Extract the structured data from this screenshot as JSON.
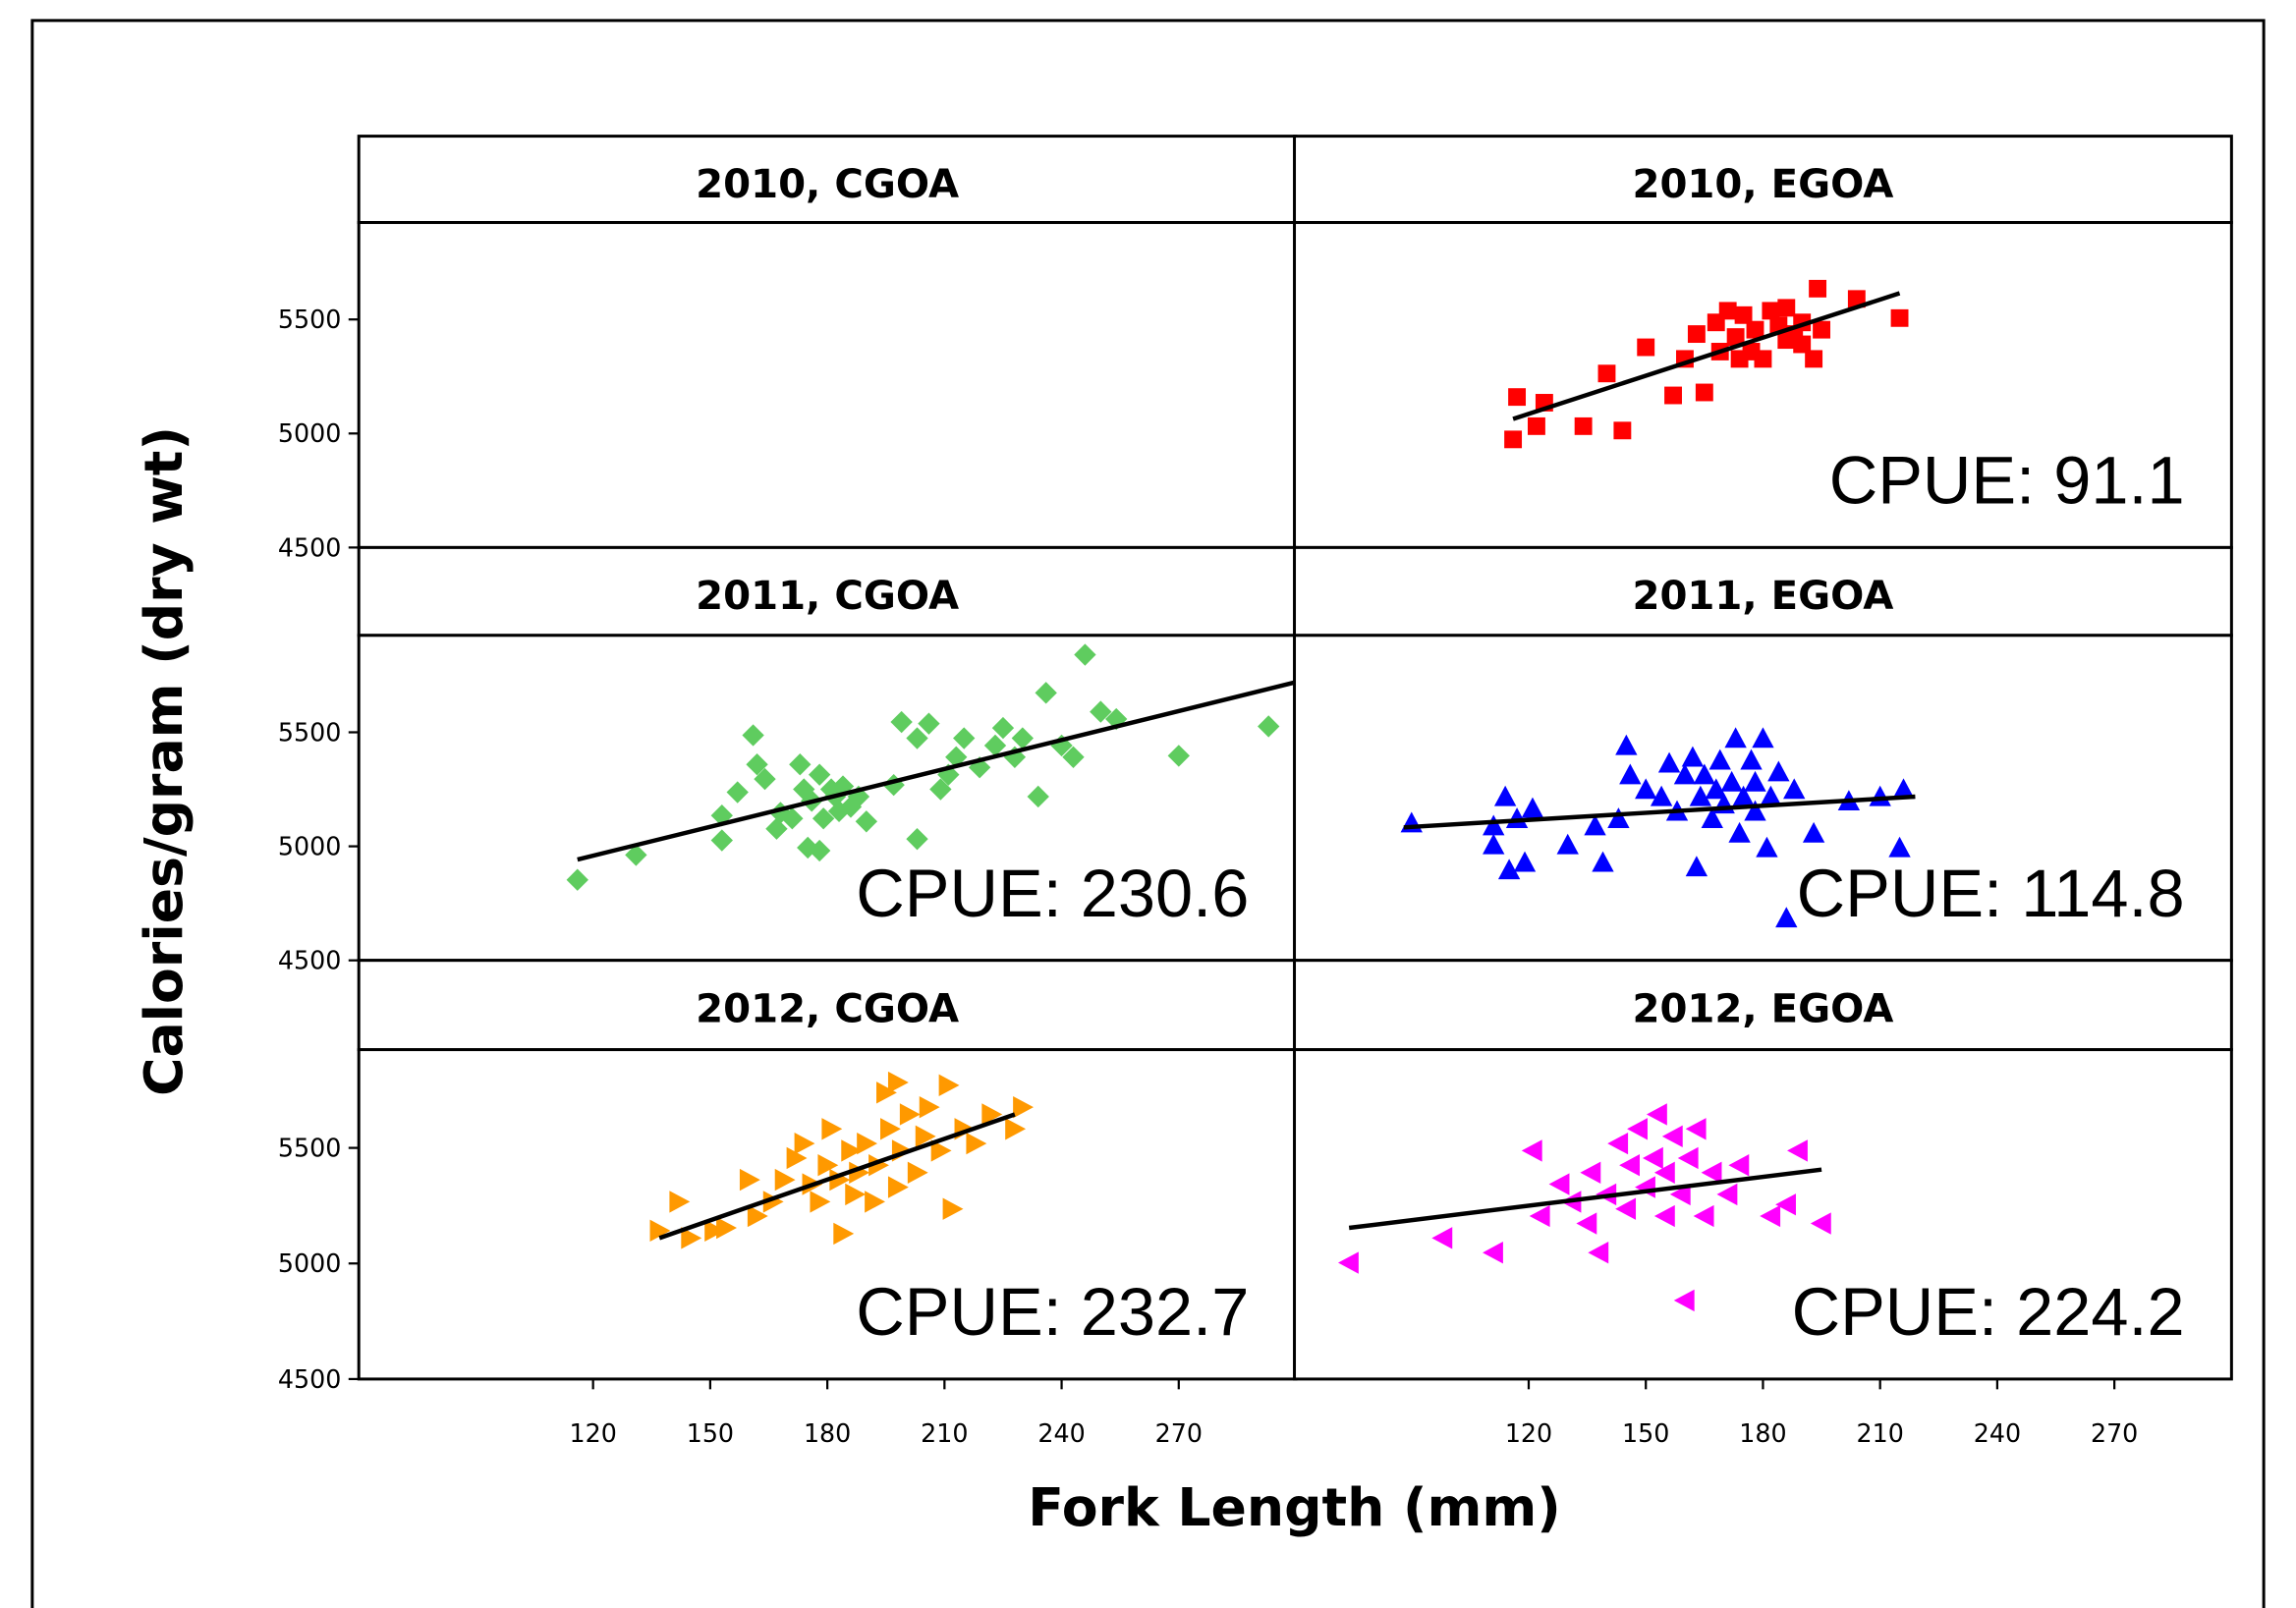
{
  "axis_labels": {
    "x_label": "Fork Length (mm)",
    "y_label": "Calories/gram (dry wt)"
  },
  "chart_data": [
    {
      "type": "scatter",
      "title": "2010, CGOA",
      "xlim": [
        60,
        300
      ],
      "ylim": [
        4500,
        5925
      ],
      "yticks": [
        4500,
        5000,
        5500
      ],
      "series": []
    },
    {
      "type": "scatter",
      "title": "2010, EGOA",
      "annotation": "CPUE: 91.1",
      "xlim": [
        60,
        300
      ],
      "ylim": [
        4500,
        5925
      ],
      "series": [
        {
          "color": "#ff0000",
          "marker": "square",
          "x": [
            116,
            117,
            122,
            124,
            134,
            144,
            140,
            150,
            157,
            160,
            165,
            163,
            169,
            168,
            173,
            175,
            177,
            178,
            182,
            184,
            186,
            188,
            190,
            193,
            195,
            194,
            204,
            215,
            171,
            180,
            174,
            186,
            190
          ],
          "y": [
            4974,
            5160,
            5032,
            5135,
            5032,
            5013,
            5263,
            5378,
            5167,
            5327,
            5180,
            5436,
            5359,
            5487,
            5423,
            5519,
            5359,
            5455,
            5538,
            5474,
            5410,
            5436,
            5487,
            5327,
            5455,
            5635,
            5590,
            5506,
            5538,
            5327,
            5327,
            5551,
            5391
          ]
        }
      ],
      "trend": {
        "x": [
          116,
          215
        ],
        "y": [
          5064,
          5615
        ]
      }
    },
    {
      "type": "scatter",
      "title": "2011, CGOA",
      "annotation": "CPUE: 230.6",
      "xlim": [
        60,
        300
      ],
      "ylim": [
        4500,
        5925
      ],
      "yticks": [
        4500,
        5000,
        5500
      ],
      "series": [
        {
          "color": "#5fcc5f",
          "marker": "diamond",
          "x": [
            116,
            131,
            153,
            153,
            157,
            161,
            162,
            164,
            167,
            168,
            173,
            174,
            176,
            178,
            179,
            181,
            182,
            183,
            184,
            186,
            188,
            190,
            178,
            197,
            199,
            203,
            203,
            206,
            209,
            211,
            213,
            215,
            219,
            223,
            225,
            228,
            230,
            234,
            236,
            240,
            243,
            246,
            250,
            254,
            270,
            293,
            171,
            175
          ],
          "y": [
            4853,
            4962,
            5026,
            5135,
            5237,
            5487,
            5359,
            5295,
            5077,
            5147,
            5359,
            5250,
            5199,
            5314,
            5122,
            5250,
            5218,
            5154,
            5263,
            5173,
            5218,
            5109,
            4981,
            5269,
            5545,
            5032,
            5474,
            5538,
            5250,
            5314,
            5391,
            5474,
            5346,
            5442,
            5519,
            5391,
            5474,
            5218,
            5673,
            5442,
            5391,
            5840,
            5590,
            5558,
            5397,
            5526,
            5122,
            4994
          ]
        }
      ],
      "trend": {
        "x": [
          116,
          301
        ],
        "y": [
          4942,
          5724
        ]
      }
    },
    {
      "type": "scatter",
      "title": "2011, EGOA",
      "annotation": "CPUE: 114.8",
      "xlim": [
        60,
        300
      ],
      "ylim": [
        4500,
        5925
      ],
      "series": [
        {
          "color": "#0000ff",
          "marker": "triangle-up",
          "x": [
            90,
            111,
            111,
            114,
            115,
            117,
            119,
            121,
            130,
            137,
            139,
            143,
            145,
            146,
            150,
            154,
            156,
            158,
            160,
            162,
            163,
            164,
            165,
            167,
            168,
            169,
            170,
            172,
            173,
            174,
            175,
            177,
            178,
            178,
            180,
            181,
            182,
            184,
            186,
            188,
            193,
            202,
            210,
            215,
            216
          ],
          "y": [
            5103,
            5090,
            5007,
            5218,
            4897,
            5122,
            4930,
            5167,
            5007,
            5090,
            4930,
            5122,
            5442,
            5314,
            5250,
            5218,
            5365,
            5154,
            5314,
            5391,
            4910,
            5218,
            5314,
            5122,
            5250,
            5378,
            5186,
            5282,
            5474,
            5058,
            5218,
            5378,
            5154,
            5282,
            5474,
            4994,
            5218,
            5327,
            4686,
            5250,
            5058,
            5199,
            5218,
            4994,
            5250
          ]
        }
      ],
      "trend": {
        "x": [
          88,
          219
        ],
        "y": [
          5083,
          5218
        ]
      }
    },
    {
      "type": "scatter",
      "title": "2012, CGOA",
      "annotation": "CPUE: 232.7",
      "xlim": [
        60,
        300
      ],
      "ylim": [
        4500,
        5925
      ],
      "yticks": [
        4500,
        5000,
        5500
      ],
      "xticks": [
        120,
        150,
        180,
        210,
        240,
        270
      ],
      "series": [
        {
          "color": "#ff9900",
          "marker": "triangle-right",
          "x": [
            137,
            142,
            145,
            151,
            154,
            160,
            162,
            166,
            169,
            172,
            174,
            176,
            178,
            180,
            181,
            183,
            184,
            186,
            187,
            188,
            190,
            192,
            193,
            195,
            196,
            198,
            199,
            201,
            203,
            205,
            206,
            209,
            211,
            212,
            215,
            218,
            222,
            230,
            228,
            198
          ],
          "y": [
            5142,
            5267,
            5110,
            5142,
            5154,
            5362,
            5205,
            5267,
            5362,
            5456,
            5519,
            5343,
            5267,
            5425,
            5582,
            5362,
            5129,
            5488,
            5299,
            5393,
            5519,
            5267,
            5425,
            5739,
            5582,
            5330,
            5488,
            5645,
            5393,
            5550,
            5676,
            5488,
            5771,
            5236,
            5582,
            5519,
            5645,
            5676,
            5582,
            5783
          ]
        }
      ],
      "trend": {
        "x": [
          137,
          228
        ],
        "y": [
          5110,
          5645
        ]
      }
    },
    {
      "type": "scatter",
      "title": "2012, EGOA",
      "annotation": "CPUE: 224.2",
      "xlim": [
        60,
        300
      ],
      "ylim": [
        4500,
        5925
      ],
      "xticks": [
        120,
        150,
        180,
        210,
        240,
        270
      ],
      "series": [
        {
          "color": "#ff00ff",
          "marker": "triangle-left",
          "x": [
            74,
            98,
            111,
            121,
            123,
            128,
            131,
            135,
            136,
            138,
            140,
            143,
            145,
            146,
            148,
            150,
            152,
            153,
            155,
            155,
            157,
            159,
            160,
            161,
            163,
            165,
            167,
            171,
            174,
            182,
            186,
            189,
            195
          ],
          "y": [
            5003,
            5110,
            5047,
            5488,
            5205,
            5343,
            5267,
            5173,
            5393,
            5047,
            5299,
            5519,
            5236,
            5425,
            5582,
            5330,
            5456,
            5645,
            5205,
            5393,
            5550,
            5299,
            4840,
            5456,
            5582,
            5205,
            5393,
            5299,
            5425,
            5205,
            5255,
            5488,
            5173
          ]
        }
      ],
      "trend": {
        "x": [
          74,
          195
        ],
        "y": [
          5154,
          5406
        ]
      }
    }
  ]
}
